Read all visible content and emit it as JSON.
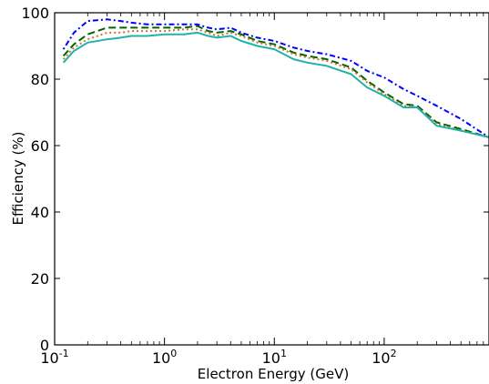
{
  "chart_data": {
    "type": "line",
    "xlabel": "Electron Energy (GeV)",
    "ylabel": "Efficiency (%)",
    "xscale": "log",
    "xlim": [
      0.1,
      900
    ],
    "ylim": [
      0,
      100
    ],
    "grid": false,
    "x_ticks": [
      {
        "base": "10",
        "exp": "-1",
        "value": 0.1
      },
      {
        "base": "10",
        "exp": "0",
        "value": 1
      },
      {
        "base": "10",
        "exp": "1",
        "value": 10
      },
      {
        "base": "10",
        "exp": "2",
        "value": 100
      }
    ],
    "y_ticks": [
      "0",
      "20",
      "40",
      "60",
      "80",
      "100"
    ],
    "x": [
      0.12,
      0.15,
      0.2,
      0.3,
      0.4,
      0.5,
      0.7,
      1.0,
      1.5,
      2.0,
      2.5,
      3.0,
      4.0,
      5.0,
      7.0,
      10,
      15,
      20,
      30,
      50,
      70,
      100,
      150,
      200,
      300,
      500,
      900
    ],
    "series": [
      {
        "color": "#0000ff",
        "dash": "2,3,6,3",
        "values": [
          89,
          94,
          97.5,
          98,
          97.5,
          97,
          96.5,
          96.5,
          96.5,
          96.5,
          95.5,
          95,
          95.5,
          94,
          92.5,
          91.5,
          89.5,
          88.5,
          87.5,
          85.5,
          82.5,
          80.5,
          77,
          75,
          72,
          68,
          62.5
        ]
      },
      {
        "color": "#006400",
        "dash": "8,4",
        "values": [
          87,
          90.5,
          93.5,
          95.5,
          95.5,
          95.5,
          95.5,
          95.5,
          95.5,
          96,
          94.5,
          94,
          94.5,
          93.5,
          91.5,
          90.5,
          88,
          87,
          86,
          83.5,
          79.5,
          76,
          72.5,
          72,
          67,
          65,
          62.5
        ]
      },
      {
        "color": "#c87533",
        "dash": "2,3",
        "values": [
          86,
          89.5,
          92,
          94,
          94,
          94.5,
          94.5,
          94.5,
          95,
          95,
          94,
          93,
          94,
          93,
          91,
          90,
          87.5,
          86.5,
          85.5,
          83,
          79,
          75.5,
          72,
          71.5,
          66.5,
          64.5,
          62.5
        ]
      },
      {
        "color": "#20b2aa",
        "dash": "",
        "values": [
          85,
          88.5,
          91,
          92,
          92.5,
          93,
          93,
          93.5,
          93.5,
          94,
          93,
          92.5,
          93,
          91.5,
          90,
          89,
          86,
          85,
          84,
          81.5,
          77.5,
          75,
          71.5,
          71.5,
          66,
          64.5,
          62.5
        ]
      }
    ]
  }
}
